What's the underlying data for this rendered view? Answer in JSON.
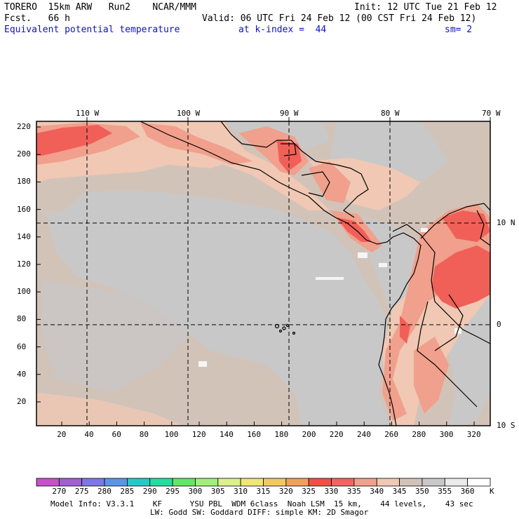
{
  "header": {
    "model": "TORERO  15km ARW   Run2    NCAR/MMM",
    "init": "Init: 12 UTC Tue 21 Feb 12",
    "fcst": "Fcst.   66 h",
    "valid": "Valid: 06 UTC Fri 24 Feb 12 (00 CST Fri 24 Feb 12)",
    "field": "Equivalent potential temperature",
    "level": "at k-index =  44",
    "smooth": "sm= 2"
  },
  "map": {
    "lon_labels": [
      "110 W",
      "100 W",
      "90 W",
      "80 W",
      "70 W"
    ],
    "lat_labels": [
      "10 N",
      "0",
      "10 S"
    ],
    "y_ticks": [
      "220",
      "200",
      "180",
      "160",
      "140",
      "120",
      "100",
      "80",
      "60",
      "40",
      "20"
    ],
    "x_ticks": [
      "20",
      "40",
      "60",
      "80",
      "100",
      "120",
      "140",
      "160",
      "180",
      "200",
      "220",
      "240",
      "260",
      "280",
      "300",
      "320"
    ]
  },
  "colorbar": {
    "labels": [
      "270",
      "275",
      "280",
      "285",
      "290",
      "295",
      "300",
      "305",
      "310",
      "315",
      "320",
      "325",
      "330",
      "335",
      "340",
      "345",
      "350",
      "355",
      "360"
    ],
    "unit": "K",
    "colors": [
      "#c850c8",
      "#a060d2",
      "#7c78e6",
      "#5a96e6",
      "#28c8c8",
      "#28dca0",
      "#64e664",
      "#a0f078",
      "#dcf08c",
      "#f0e678",
      "#f0c864",
      "#f0a05a",
      "#f05046",
      "#f06464",
      "#f0a08c",
      "#f0c8b4",
      "#d2c3b9",
      "#c8c8c8",
      "#ebebeb",
      "#ffffff"
    ]
  },
  "footer": {
    "line1": "Model Info: V3.3.1    KF      YSU PBL  WDM 6class  Noah LSM  15 km,    44 levels,    43 sec",
    "line2": "LW: Godd SW: Goddard DIFF: simple KM: 2D Smagor"
  }
}
